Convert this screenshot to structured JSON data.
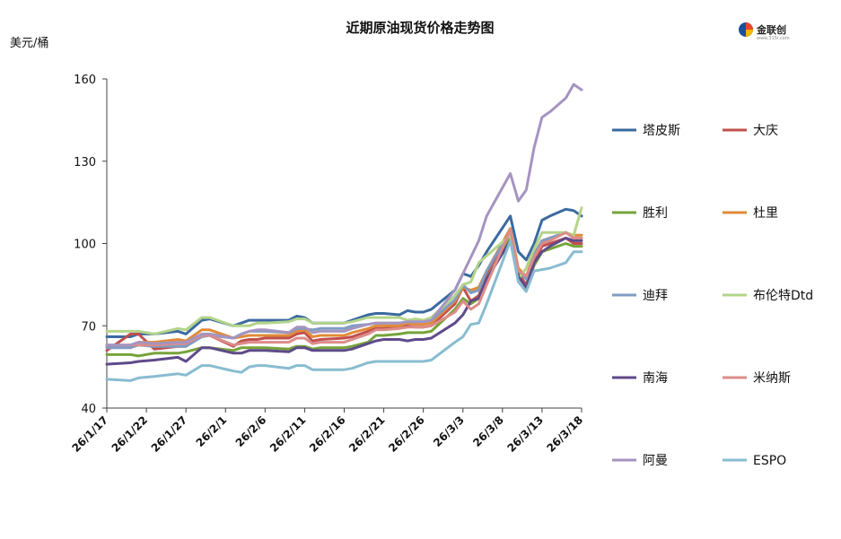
{
  "logo": {
    "text": "金联创",
    "sub": "www.315i.com"
  },
  "chart_data": {
    "type": "line",
    "title": "近期原油现货价格走势图",
    "ylabel": "美元/桶",
    "ylim": [
      40,
      160
    ],
    "yticks": [
      40,
      70,
      100,
      130,
      160
    ],
    "grid": false,
    "legend_position": "right",
    "x_tick_labels": [
      "26/1/17",
      "26/1/22",
      "26/1/27",
      "26/2/1",
      "26/2/6",
      "26/2/11",
      "26/2/16",
      "26/2/21",
      "26/2/26",
      "26/3/3",
      "26/3/8",
      "26/3/13",
      "26/3/18"
    ],
    "x_tick_positions": [
      0,
      5,
      10,
      15,
      20,
      25,
      30,
      35,
      40,
      45,
      50,
      55,
      60
    ],
    "x_range": [
      0,
      60
    ],
    "x": [
      0,
      3,
      4,
      6,
      9,
      10,
      12,
      13,
      16,
      17,
      18,
      19,
      20,
      23,
      24,
      25,
      26,
      27,
      30,
      31,
      33,
      34,
      35,
      37,
      38,
      39,
      40,
      41,
      44,
      45,
      46,
      47,
      48,
      51,
      52,
      53,
      54,
      55,
      56,
      58,
      59,
      60
    ],
    "series": [
      {
        "name": "塔皮斯",
        "color": "#3b6aa0",
        "values": [
          66,
          66,
          67,
          67,
          68,
          67,
          72,
          72.5,
          70,
          71,
          72,
          72,
          72,
          72,
          73.5,
          73,
          71,
          71,
          71,
          72,
          74,
          74.5,
          74.5,
          74,
          75.5,
          75,
          75,
          76,
          83,
          89,
          88,
          92,
          97,
          110,
          97,
          94,
          100,
          108.5,
          110,
          112.5,
          112,
          110
        ]
      },
      {
        "name": "大庆",
        "color": "#c0504d",
        "values": [
          61,
          67,
          67,
          61.5,
          62.5,
          62.5,
          66.5,
          66.5,
          62.5,
          64.5,
          65,
          65,
          65.5,
          65.5,
          67,
          67.5,
          64.5,
          65,
          65.5,
          66,
          68,
          69,
          69,
          69.5,
          70,
          69.5,
          69.5,
          70,
          78,
          84,
          79,
          81,
          89,
          104,
          89,
          85,
          93,
          99,
          100,
          102,
          100,
          100
        ]
      },
      {
        "name": "胜利",
        "color": "#76a33a",
        "values": [
          59.5,
          59.5,
          59,
          60,
          60,
          60.5,
          62,
          62,
          61,
          62,
          62,
          62,
          62,
          61.5,
          62.5,
          62.5,
          61.5,
          62,
          62,
          62.5,
          64,
          66.5,
          66.5,
          67,
          67.5,
          67.5,
          67.5,
          68,
          76,
          80,
          78,
          80,
          87,
          102,
          88,
          84,
          92,
          97,
          98,
          100,
          99,
          99
        ]
      },
      {
        "name": "杜里",
        "color": "#e18b39",
        "values": [
          62.5,
          62.5,
          64,
          64,
          65,
          64.5,
          68.5,
          68.5,
          65.5,
          66,
          66.5,
          66.5,
          66.5,
          66.5,
          68,
          68.5,
          66,
          66.5,
          66.5,
          67.5,
          69,
          70,
          70,
          70,
          71,
          70.5,
          70.5,
          71,
          79,
          84,
          83,
          84,
          90,
          105.5,
          91,
          88,
          96,
          101,
          102,
          104,
          103,
          103
        ]
      },
      {
        "name": "迪拜",
        "color": "#7f9cc2",
        "values": [
          62,
          62,
          63,
          62.5,
          62.5,
          62.5,
          66,
          66.5,
          65.5,
          67,
          68,
          68,
          68,
          67.5,
          69,
          69,
          68.5,
          69,
          69,
          70,
          70.5,
          71,
          71,
          71,
          71.5,
          71.5,
          71.5,
          72,
          79.5,
          85,
          82,
          83,
          90,
          104.5,
          90,
          87,
          96,
          101,
          102,
          104,
          102,
          102
        ]
      },
      {
        "name": "布伦特Dtd",
        "color": "#b3d48a",
        "values": [
          68,
          68,
          68,
          67,
          69,
          68.5,
          73,
          73,
          70,
          70,
          70,
          71,
          71,
          71.5,
          72.5,
          72.5,
          71,
          71,
          71,
          71.5,
          73,
          73,
          73,
          73,
          72,
          72.5,
          72,
          73,
          81,
          85,
          86,
          93,
          95.5,
          103,
          87,
          91,
          98,
          104,
          104,
          104,
          103,
          113
        ]
      },
      {
        "name": "南海",
        "color": "#5f4a8a",
        "values": [
          56,
          56.5,
          57,
          57.5,
          58.5,
          57,
          62,
          62,
          60,
          60,
          61,
          61,
          61,
          60.5,
          62,
          62,
          61,
          61,
          61,
          61.5,
          63.5,
          64.5,
          65,
          65,
          64.5,
          65,
          65,
          65.5,
          71,
          74,
          79,
          80,
          87,
          101,
          88,
          84,
          93,
          97,
          99,
          102,
          101,
          101
        ]
      },
      {
        "name": "米纳斯",
        "color": "#dc8c8a",
        "values": [
          63,
          63,
          63,
          63,
          63.5,
          63.5,
          66.5,
          66.5,
          63,
          63.5,
          64,
          64,
          64,
          64,
          65.5,
          65.5,
          63.5,
          64,
          64,
          65,
          67,
          68.5,
          68.5,
          69,
          69.5,
          69.5,
          69.5,
          70,
          75,
          79,
          76,
          78,
          85,
          105,
          90,
          88,
          95,
          100,
          101,
          104,
          102,
          102
        ]
      },
      {
        "name": "阿曼",
        "color": "#a594c0",
        "values": [
          63,
          63,
          64,
          63.5,
          64,
          64,
          67,
          67,
          65.5,
          67,
          68,
          68.5,
          68.5,
          67.5,
          69.5,
          69.5,
          67.5,
          68,
          68,
          69,
          70.5,
          71,
          71,
          71,
          71.5,
          71.5,
          71.5,
          72,
          83,
          89,
          95,
          101,
          110,
          125.5,
          115.5,
          119.5,
          135,
          146,
          148,
          153,
          158,
          156
        ]
      },
      {
        "name": "ESPO",
        "color": "#88bcd0",
        "values": [
          50.5,
          50,
          51,
          51.5,
          52.5,
          52,
          55.5,
          55.5,
          53.5,
          53,
          55,
          55.5,
          55.5,
          54.5,
          55.5,
          55.5,
          54,
          54,
          54,
          54.5,
          56.5,
          57,
          57,
          57,
          57,
          57,
          57,
          57.5,
          64,
          66,
          70.5,
          71,
          78,
          101,
          86,
          82.5,
          90,
          90.5,
          91,
          93,
          97,
          97
        ]
      }
    ]
  }
}
